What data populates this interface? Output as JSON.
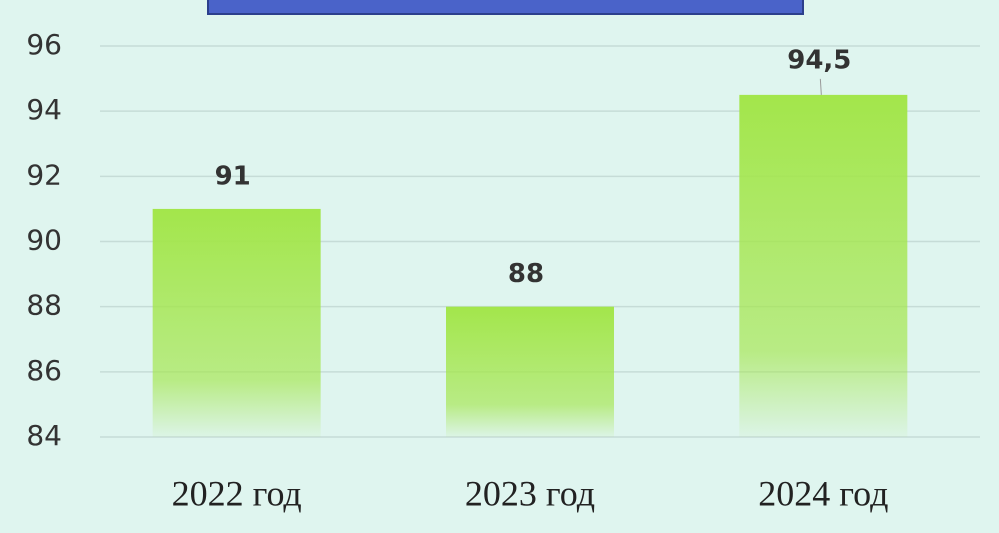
{
  "chart_data": {
    "type": "bar",
    "categories": [
      "2022 год",
      "2023 год",
      "2024 год"
    ],
    "values": [
      91,
      88,
      94.5
    ],
    "value_labels": [
      "91",
      "88",
      "94,5"
    ],
    "color": "#a3e64b",
    "ylim": [
      84,
      96
    ],
    "yticks": [
      84,
      86,
      88,
      90,
      92,
      94,
      96
    ],
    "grid": true
  }
}
